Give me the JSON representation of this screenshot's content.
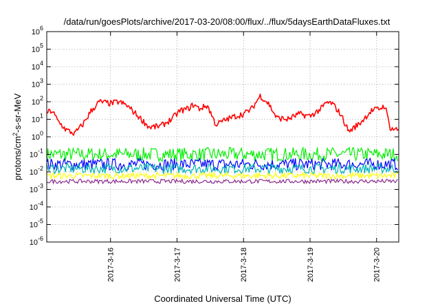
{
  "chart_data": {
    "type": "line",
    "title": "/data/run/goesPlots/archive/2017-03-20/08:00/flux/../flux/5daysEarthDataFluxes.txt",
    "xlabel": "Coordinated Universal Time (UTC)",
    "ylabel": {
      "base": "protons/cm",
      "sup": "2",
      "rest": "-s-sr-MeV"
    },
    "x_range": [
      "2017-03-15T01:00",
      "2017-03-20T08:00"
    ],
    "x_ticks": [
      {
        "date": "2017-03-16",
        "label": "2017-3-16"
      },
      {
        "date": "2017-03-17",
        "label": "2017-3-17"
      },
      {
        "date": "2017-03-18",
        "label": "2017-3-18"
      },
      {
        "date": "2017-03-19",
        "label": "2017-3-19"
      },
      {
        "date": "2017-03-20",
        "label": "2017-3-20"
      }
    ],
    "y_scale": "log",
    "y_range": [
      1e-06,
      1000000.0
    ],
    "y_ticks": [
      {
        "value": 1e-06,
        "base": "10",
        "exp": "-6"
      },
      {
        "value": 1e-05,
        "base": "10",
        "exp": "-5"
      },
      {
        "value": 0.0001,
        "base": "10",
        "exp": "-4"
      },
      {
        "value": 0.001,
        "base": "10",
        "exp": "-3"
      },
      {
        "value": 0.01,
        "base": "10",
        "exp": "-2"
      },
      {
        "value": 0.1,
        "base": "10",
        "exp": "-1"
      },
      {
        "value": 1.0,
        "base": "10",
        "exp": "0"
      },
      {
        "value": 10.0,
        "base": "10",
        "exp": "1"
      },
      {
        "value": 100.0,
        "base": "10",
        "exp": "2"
      },
      {
        "value": 1000.0,
        "base": "10",
        "exp": "3"
      },
      {
        "value": 10000.0,
        "base": "10",
        "exp": "4"
      },
      {
        "value": 100000.0,
        "base": "10",
        "exp": "5"
      },
      {
        "value": 1000000.0,
        "base": "10",
        "exp": "6"
      }
    ],
    "grid": true,
    "legend": "none",
    "series": [
      {
        "color": "#ff0000",
        "style": "line",
        "x": [
          "2017-03-15T01:00",
          "2017-03-15T03:00",
          "2017-03-15T05:00",
          "2017-03-15T08:00",
          "2017-03-15T11:00",
          "2017-03-15T14:00",
          "2017-03-15T17:00",
          "2017-03-15T20:00",
          "2017-03-16T00:00",
          "2017-03-16T03:00",
          "2017-03-16T06:00",
          "2017-03-16T10:00",
          "2017-03-16T14:00",
          "2017-03-16T18:00",
          "2017-03-16T22:00",
          "2017-03-17T01:00",
          "2017-03-17T04:00",
          "2017-03-17T06:00",
          "2017-03-17T08:00",
          "2017-03-17T11:00",
          "2017-03-17T14:00",
          "2017-03-17T18:00",
          "2017-03-17T21:00",
          "2017-03-18T00:00",
          "2017-03-18T03:00",
          "2017-03-18T06:00",
          "2017-03-18T09:00",
          "2017-03-18T12:00",
          "2017-03-18T16:00",
          "2017-03-18T20:00",
          "2017-03-19T00:00",
          "2017-03-19T04:00",
          "2017-03-19T06:00",
          "2017-03-19T08:00",
          "2017-03-19T11:00",
          "2017-03-19T14:00",
          "2017-03-19T18:00",
          "2017-03-19T22:00",
          "2017-03-20T01:00",
          "2017-03-20T03:00",
          "2017-03-20T05:00",
          "2017-03-20T08:00"
        ],
        "y": [
          25,
          30,
          8,
          2.5,
          1.5,
          5,
          30,
          100,
          80,
          100,
          60,
          15,
          3.5,
          4,
          10,
          30,
          40,
          70,
          40,
          60,
          5,
          10,
          15,
          20,
          40,
          220,
          80,
          12,
          10,
          20,
          15,
          40,
          90,
          80,
          20,
          2,
          6,
          30,
          40,
          60,
          3,
          2.5
        ]
      },
      {
        "color": "#00ee00",
        "style": "band",
        "low": 0.04,
        "high": 0.25
      },
      {
        "color": "#0000ff",
        "style": "band",
        "low": 0.012,
        "high": 0.06
      },
      {
        "color": "#00b3b3",
        "style": "band",
        "low": 0.008,
        "high": 0.03
      },
      {
        "color": "#ffff00",
        "style": "band",
        "low": 0.004,
        "high": 0.009
      },
      {
        "color": "#8a2a8a",
        "style": "band",
        "low": 0.0022,
        "high": 0.0038
      }
    ]
  }
}
